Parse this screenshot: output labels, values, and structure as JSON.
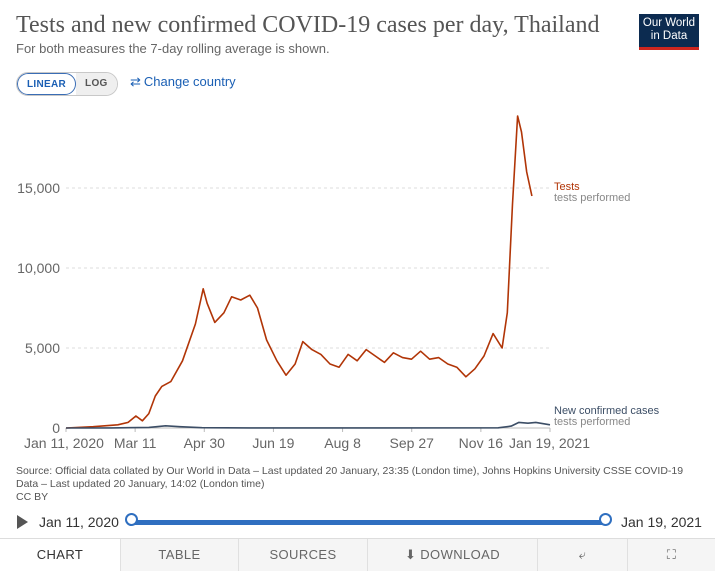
{
  "header": {
    "title": "Tests and new confirmed COVID-19 cases per day, Thailand",
    "subtitle": "For both measures the 7-day rolling average is shown.",
    "logo_line1": "Our World",
    "logo_line2": "in Data"
  },
  "controls": {
    "linear_label": "LINEAR",
    "log_label": "LOG",
    "change_country_label": "Change country",
    "change_country_icon": "swap-arrows-icon"
  },
  "chart_data": {
    "type": "line",
    "x_start": "2020-01-11",
    "x_end": "2021-01-19",
    "x_tick_labels": [
      "Jan 11, 2020",
      "Mar 11",
      "Apr 30",
      "Jun 19",
      "Aug 8",
      "Sep 27",
      "Nov 16",
      "Jan 19, 2021"
    ],
    "y_ticks": [
      0,
      5000,
      10000,
      15000
    ],
    "y_tick_labels": [
      "0",
      "5,000",
      "10,000",
      "15,000"
    ],
    "ylim": [
      0,
      20000
    ],
    "grid": true,
    "series": [
      {
        "name": "Tests",
        "sub_label": "tests performed",
        "color": "#b13507",
        "points": [
          [
            "2020-01-11",
            0
          ],
          [
            "2020-02-01",
            80
          ],
          [
            "2020-02-20",
            200
          ],
          [
            "2020-02-28",
            350
          ],
          [
            "2020-03-05",
            750
          ],
          [
            "2020-03-10",
            450
          ],
          [
            "2020-03-15",
            900
          ],
          [
            "2020-03-20",
            2000
          ],
          [
            "2020-03-25",
            2600
          ],
          [
            "2020-04-01",
            2900
          ],
          [
            "2020-04-10",
            4200
          ],
          [
            "2020-04-20",
            6500
          ],
          [
            "2020-04-26",
            8700
          ],
          [
            "2020-04-29",
            7800
          ],
          [
            "2020-05-05",
            6600
          ],
          [
            "2020-05-12",
            7200
          ],
          [
            "2020-05-18",
            8200
          ],
          [
            "2020-05-25",
            8000
          ],
          [
            "2020-06-01",
            8300
          ],
          [
            "2020-06-07",
            7500
          ],
          [
            "2020-06-14",
            5500
          ],
          [
            "2020-06-22",
            4200
          ],
          [
            "2020-06-29",
            3300
          ],
          [
            "2020-07-06",
            4000
          ],
          [
            "2020-07-12",
            5400
          ],
          [
            "2020-07-19",
            4900
          ],
          [
            "2020-07-26",
            4600
          ],
          [
            "2020-08-02",
            4000
          ],
          [
            "2020-08-09",
            3800
          ],
          [
            "2020-08-16",
            4600
          ],
          [
            "2020-08-23",
            4200
          ],
          [
            "2020-08-30",
            4900
          ],
          [
            "2020-09-06",
            4500
          ],
          [
            "2020-09-13",
            4100
          ],
          [
            "2020-09-20",
            4700
          ],
          [
            "2020-09-27",
            4400
          ],
          [
            "2020-10-04",
            4300
          ],
          [
            "2020-10-11",
            4800
          ],
          [
            "2020-10-18",
            4300
          ],
          [
            "2020-10-25",
            4400
          ],
          [
            "2020-11-01",
            4000
          ],
          [
            "2020-11-08",
            3800
          ],
          [
            "2020-11-15",
            3200
          ],
          [
            "2020-11-22",
            3700
          ],
          [
            "2020-11-29",
            4500
          ],
          [
            "2020-12-06",
            5900
          ],
          [
            "2020-12-13",
            5000
          ],
          [
            "2020-12-17",
            7200
          ],
          [
            "2020-12-21",
            14000
          ],
          [
            "2020-12-25",
            19500
          ],
          [
            "2020-12-28",
            18500
          ],
          [
            "2021-01-01",
            16000
          ],
          [
            "2021-01-05",
            14500
          ]
        ]
      },
      {
        "name": "New confirmed cases",
        "sub_label": "tests performed",
        "color": "#3c4e66",
        "points": [
          [
            "2020-01-11",
            0
          ],
          [
            "2020-02-15",
            5
          ],
          [
            "2020-03-15",
            40
          ],
          [
            "2020-03-28",
            140
          ],
          [
            "2020-04-08",
            80
          ],
          [
            "2020-04-25",
            20
          ],
          [
            "2020-06-01",
            5
          ],
          [
            "2020-09-01",
            5
          ],
          [
            "2020-12-10",
            10
          ],
          [
            "2020-12-20",
            120
          ],
          [
            "2020-12-26",
            350
          ],
          [
            "2021-01-02",
            300
          ],
          [
            "2021-01-08",
            350
          ],
          [
            "2021-01-19",
            200
          ]
        ]
      }
    ]
  },
  "source": {
    "text": "Source: Official data collated by Our World in Data – Last updated 20 January, 23:35 (London time), Johns Hopkins University CSSE COVID-19 Data – Last updated 20 January, 14:02 (London time)",
    "license": "CC BY"
  },
  "timeline": {
    "start_label": "Jan 11, 2020",
    "end_label": "Jan 19, 2021"
  },
  "tabs": {
    "chart": "CHART",
    "table": "TABLE",
    "sources": "SOURCES",
    "download": "DOWNLOAD",
    "download_icon": "download-icon",
    "share_icon": "share-icon",
    "fullscreen_icon": "fullscreen-icon"
  }
}
